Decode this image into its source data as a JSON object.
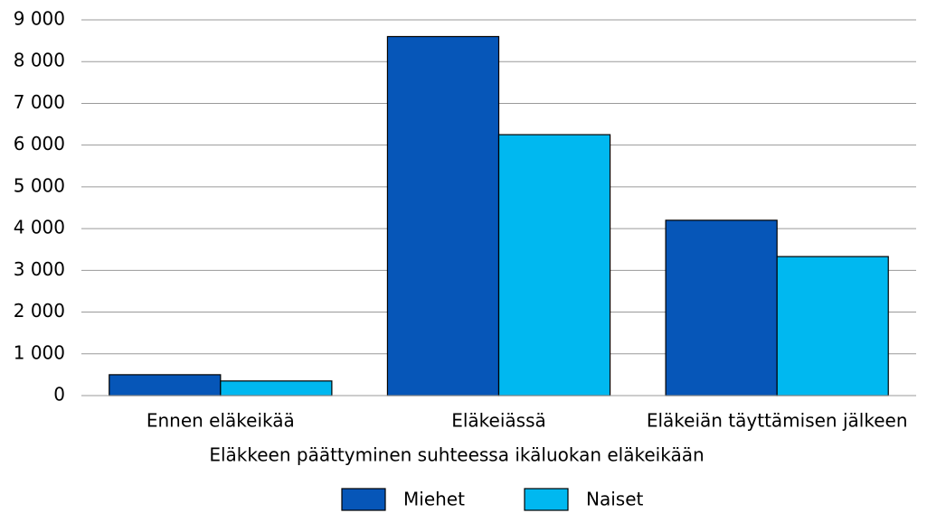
{
  "chart_data": {
    "type": "bar",
    "xlabel": "Eläkkeen päättyminen suhteessa ikäluokan eläkeikään",
    "categories": [
      "Ennen eläkeikää",
      "Eläkeiässä",
      "Eläkeiän täyttämisen jälkeen"
    ],
    "series": [
      {
        "name": "Miehet",
        "color": "#0656b8",
        "values": [
          500,
          8600,
          4200
        ]
      },
      {
        "name": "Naiset",
        "color": "#00b8f0",
        "values": [
          350,
          6250,
          3330
        ]
      }
    ],
    "ylim": [
      0,
      9000
    ],
    "yticks": [
      0,
      {
        "value": 1000,
        "label": "1 000"
      },
      {
        "value": 2000,
        "label": "2 000"
      },
      {
        "value": 3000,
        "label": "3 000"
      },
      {
        "value": 4000,
        "label": "4 000"
      },
      {
        "value": 5000,
        "label": "5 000"
      },
      {
        "value": 6000,
        "label": "6 000"
      },
      {
        "value": 7000,
        "label": "7 000"
      },
      {
        "value": 8000,
        "label": "8 000"
      },
      {
        "value": 9000,
        "label": "9 000"
      }
    ],
    "grid": true,
    "legend": "bottom"
  }
}
